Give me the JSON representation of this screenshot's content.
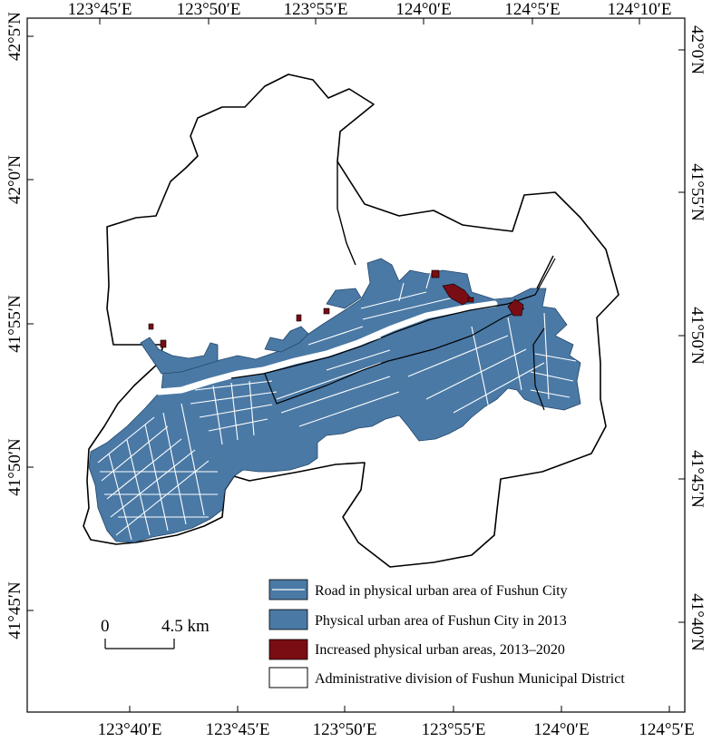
{
  "map": {
    "top_axis_labels": [
      "123°45′E",
      "123°50′E",
      "123°55′E",
      "124°0′E",
      "124°5′E",
      "124°10′E"
    ],
    "bottom_axis_labels": [
      "123°40′E",
      "123°45′E",
      "123°50′E",
      "123°55′E",
      "124°0′E",
      "124°5′E"
    ],
    "left_axis_labels": [
      "42°5′N",
      "42°0′N",
      "41°55′N",
      "41°50′N",
      "41°45′N"
    ],
    "right_axis_labels": [
      "42°0′N",
      "41°55′N",
      "41°50′N",
      "41°45′N",
      "41°40′N"
    ],
    "scale_bar": {
      "start_label": "0",
      "end_label": "4.5 km"
    },
    "legend": {
      "items": [
        {
          "label": "Road in physical urban area of Fushun City",
          "symbol": "road",
          "fill": "#4a79a5",
          "line": "#ffffff"
        },
        {
          "label": "Physical urban area of Fushun City in 2013",
          "symbol": "urban",
          "fill": "#4a79a5"
        },
        {
          "label": "Increased physical urban areas, 2013–2020",
          "symbol": "increase",
          "fill": "#7a0c14"
        },
        {
          "label": "Administrative division of Fushun Municipal District",
          "symbol": "admin",
          "fill": "#ffffff"
        }
      ]
    },
    "colors": {
      "urban": "#4a79a5",
      "road": "#ffffff",
      "increase": "#7a0c14",
      "boundary": "#000000"
    }
  }
}
